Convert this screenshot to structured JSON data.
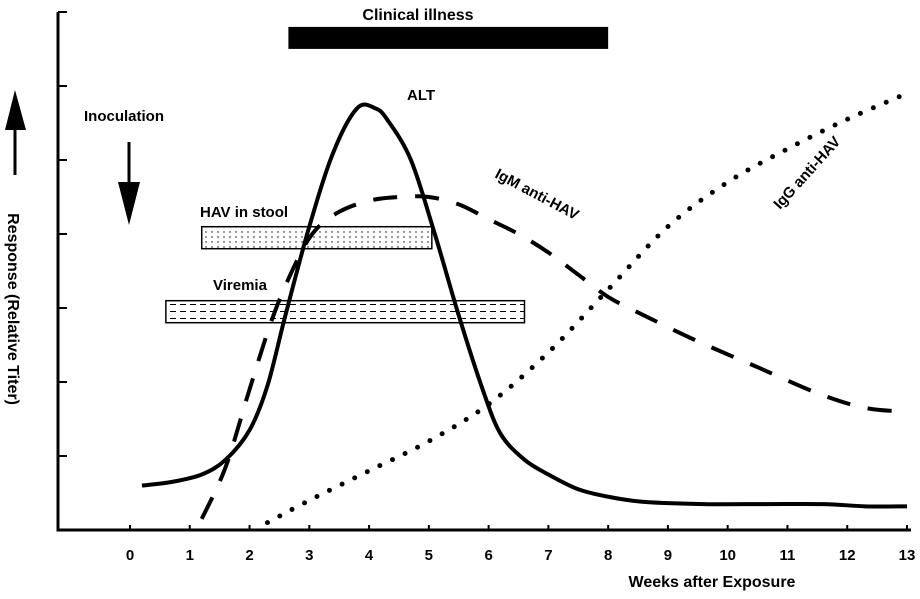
{
  "chart_data": {
    "type": "line",
    "title": "Clinical illness",
    "xlabel": "Weeks after Exposure",
    "ylabel": "Response (Relative Titer)",
    "xlim": [
      -1.6,
      13
    ],
    "ylim": [
      0,
      7
    ],
    "x_ticks": [
      0,
      1,
      2,
      3,
      4,
      5,
      6,
      7,
      8,
      9,
      10,
      11,
      12,
      13
    ],
    "x_tick_labels": [
      "0",
      "1",
      "2",
      "3",
      "4",
      "5",
      "6",
      "7",
      "8",
      "9",
      "10",
      "11",
      "12",
      "13"
    ],
    "y_ticks": [
      1,
      2,
      3,
      4,
      5,
      6,
      7
    ],
    "y_tick_labels": [],
    "grid": false,
    "series": [
      {
        "name": "ALT",
        "style": "solid",
        "x": [
          0.2,
          0.7,
          1.2,
          1.6,
          2.0,
          2.3,
          2.6,
          3.0,
          3.4,
          3.8,
          4.1,
          4.3,
          4.7,
          5.1,
          5.5,
          5.9,
          6.2,
          6.6,
          7.0,
          7.5,
          8.0,
          8.6,
          9.6,
          10.6,
          11.6,
          12.3,
          13.0
        ],
        "y": [
          0.6,
          0.65,
          0.75,
          0.95,
          1.35,
          1.95,
          2.9,
          4.1,
          5.1,
          5.7,
          5.7,
          5.55,
          5.0,
          4.0,
          2.9,
          1.9,
          1.3,
          0.95,
          0.75,
          0.55,
          0.45,
          0.38,
          0.35,
          0.35,
          0.35,
          0.32,
          0.32
        ]
      },
      {
        "name": "IgM anti-HAV",
        "style": "dashed",
        "x": [
          1.2,
          1.6,
          2.0,
          2.4,
          2.8,
          3.1,
          3.5,
          4.0,
          4.5,
          5.0,
          5.5,
          6.0,
          6.5,
          7.0,
          7.5,
          8.0,
          8.6,
          9.5,
          10.5,
          11.5,
          12.3,
          13.0
        ],
        "y": [
          0.15,
          0.85,
          1.9,
          2.9,
          3.65,
          4.05,
          4.3,
          4.45,
          4.5,
          4.5,
          4.4,
          4.2,
          4.0,
          3.75,
          3.45,
          3.15,
          2.9,
          2.55,
          2.2,
          1.85,
          1.65,
          1.6
        ]
      },
      {
        "name": "IgG anti-HAV",
        "style": "dotted",
        "x": [
          2.3,
          3.0,
          4.0,
          5.0,
          6.0,
          7.0,
          8.0,
          9.0,
          10.0,
          11.0,
          12.0,
          13.0
        ],
        "y": [
          0.1,
          0.4,
          0.8,
          1.2,
          1.7,
          2.4,
          3.25,
          4.1,
          4.7,
          5.15,
          5.55,
          5.9
        ]
      }
    ],
    "bars": [
      {
        "name": "Clinical illness",
        "x_start": 2.65,
        "x_end": 8.0,
        "y": 6.65,
        "fill": "solid"
      },
      {
        "name": "HAV in stool",
        "x_start": 1.2,
        "x_end": 5.05,
        "y": 3.95,
        "fill": "stipple"
      },
      {
        "name": "Viremia",
        "x_start": 0.6,
        "x_end": 6.6,
        "y": 2.95,
        "fill": "dashed"
      }
    ],
    "annotations": [
      {
        "text": "Inoculation",
        "x": 0,
        "y": 5.6,
        "arrow": "down"
      },
      {
        "text": "ALT",
        "x": 4.4,
        "y": 5.9
      },
      {
        "text": "IgM anti-HAV",
        "x": 6.2,
        "y": 4.4,
        "rotation": "downward slope"
      },
      {
        "text": "IgG anti-HAV",
        "x": 11.3,
        "y": 4.9,
        "rotation": "upward slope"
      },
      {
        "text": "HAV in stool",
        "x": 1.0,
        "y": 4.3
      },
      {
        "text": "Viremia",
        "x": 1.0,
        "y": 3.3
      }
    ]
  }
}
